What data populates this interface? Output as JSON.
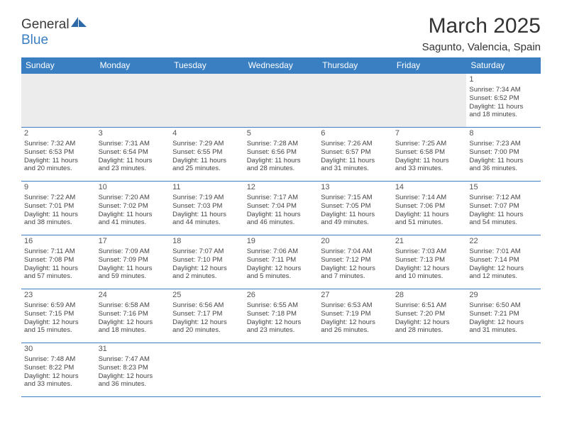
{
  "logo": {
    "word1": "General",
    "word2": "Blue"
  },
  "header": {
    "title": "March 2025",
    "subtitle": "Sagunto, Valencia, Spain"
  },
  "colors": {
    "header_bg": "#3a7fc2",
    "header_text": "#ffffff",
    "cell_border": "#3a7fc2",
    "text": "#444444",
    "blank_bg": "#ececec"
  },
  "days": [
    "Sunday",
    "Monday",
    "Tuesday",
    "Wednesday",
    "Thursday",
    "Friday",
    "Saturday"
  ],
  "weeks": [
    [
      {
        "blank": true
      },
      {
        "blank": true
      },
      {
        "blank": true
      },
      {
        "blank": true
      },
      {
        "blank": true
      },
      {
        "blank": true
      },
      {
        "n": "1",
        "sunrise": "Sunrise: 7:34 AM",
        "sunset": "Sunset: 6:52 PM",
        "day1": "Daylight: 11 hours",
        "day2": "and 18 minutes."
      }
    ],
    [
      {
        "n": "2",
        "sunrise": "Sunrise: 7:32 AM",
        "sunset": "Sunset: 6:53 PM",
        "day1": "Daylight: 11 hours",
        "day2": "and 20 minutes."
      },
      {
        "n": "3",
        "sunrise": "Sunrise: 7:31 AM",
        "sunset": "Sunset: 6:54 PM",
        "day1": "Daylight: 11 hours",
        "day2": "and 23 minutes."
      },
      {
        "n": "4",
        "sunrise": "Sunrise: 7:29 AM",
        "sunset": "Sunset: 6:55 PM",
        "day1": "Daylight: 11 hours",
        "day2": "and 25 minutes."
      },
      {
        "n": "5",
        "sunrise": "Sunrise: 7:28 AM",
        "sunset": "Sunset: 6:56 PM",
        "day1": "Daylight: 11 hours",
        "day2": "and 28 minutes."
      },
      {
        "n": "6",
        "sunrise": "Sunrise: 7:26 AM",
        "sunset": "Sunset: 6:57 PM",
        "day1": "Daylight: 11 hours",
        "day2": "and 31 minutes."
      },
      {
        "n": "7",
        "sunrise": "Sunrise: 7:25 AM",
        "sunset": "Sunset: 6:58 PM",
        "day1": "Daylight: 11 hours",
        "day2": "and 33 minutes."
      },
      {
        "n": "8",
        "sunrise": "Sunrise: 7:23 AM",
        "sunset": "Sunset: 7:00 PM",
        "day1": "Daylight: 11 hours",
        "day2": "and 36 minutes."
      }
    ],
    [
      {
        "n": "9",
        "sunrise": "Sunrise: 7:22 AM",
        "sunset": "Sunset: 7:01 PM",
        "day1": "Daylight: 11 hours",
        "day2": "and 38 minutes."
      },
      {
        "n": "10",
        "sunrise": "Sunrise: 7:20 AM",
        "sunset": "Sunset: 7:02 PM",
        "day1": "Daylight: 11 hours",
        "day2": "and 41 minutes."
      },
      {
        "n": "11",
        "sunrise": "Sunrise: 7:19 AM",
        "sunset": "Sunset: 7:03 PM",
        "day1": "Daylight: 11 hours",
        "day2": "and 44 minutes."
      },
      {
        "n": "12",
        "sunrise": "Sunrise: 7:17 AM",
        "sunset": "Sunset: 7:04 PM",
        "day1": "Daylight: 11 hours",
        "day2": "and 46 minutes."
      },
      {
        "n": "13",
        "sunrise": "Sunrise: 7:15 AM",
        "sunset": "Sunset: 7:05 PM",
        "day1": "Daylight: 11 hours",
        "day2": "and 49 minutes."
      },
      {
        "n": "14",
        "sunrise": "Sunrise: 7:14 AM",
        "sunset": "Sunset: 7:06 PM",
        "day1": "Daylight: 11 hours",
        "day2": "and 51 minutes."
      },
      {
        "n": "15",
        "sunrise": "Sunrise: 7:12 AM",
        "sunset": "Sunset: 7:07 PM",
        "day1": "Daylight: 11 hours",
        "day2": "and 54 minutes."
      }
    ],
    [
      {
        "n": "16",
        "sunrise": "Sunrise: 7:11 AM",
        "sunset": "Sunset: 7:08 PM",
        "day1": "Daylight: 11 hours",
        "day2": "and 57 minutes."
      },
      {
        "n": "17",
        "sunrise": "Sunrise: 7:09 AM",
        "sunset": "Sunset: 7:09 PM",
        "day1": "Daylight: 11 hours",
        "day2": "and 59 minutes."
      },
      {
        "n": "18",
        "sunrise": "Sunrise: 7:07 AM",
        "sunset": "Sunset: 7:10 PM",
        "day1": "Daylight: 12 hours",
        "day2": "and 2 minutes."
      },
      {
        "n": "19",
        "sunrise": "Sunrise: 7:06 AM",
        "sunset": "Sunset: 7:11 PM",
        "day1": "Daylight: 12 hours",
        "day2": "and 5 minutes."
      },
      {
        "n": "20",
        "sunrise": "Sunrise: 7:04 AM",
        "sunset": "Sunset: 7:12 PM",
        "day1": "Daylight: 12 hours",
        "day2": "and 7 minutes."
      },
      {
        "n": "21",
        "sunrise": "Sunrise: 7:03 AM",
        "sunset": "Sunset: 7:13 PM",
        "day1": "Daylight: 12 hours",
        "day2": "and 10 minutes."
      },
      {
        "n": "22",
        "sunrise": "Sunrise: 7:01 AM",
        "sunset": "Sunset: 7:14 PM",
        "day1": "Daylight: 12 hours",
        "day2": "and 12 minutes."
      }
    ],
    [
      {
        "n": "23",
        "sunrise": "Sunrise: 6:59 AM",
        "sunset": "Sunset: 7:15 PM",
        "day1": "Daylight: 12 hours",
        "day2": "and 15 minutes."
      },
      {
        "n": "24",
        "sunrise": "Sunrise: 6:58 AM",
        "sunset": "Sunset: 7:16 PM",
        "day1": "Daylight: 12 hours",
        "day2": "and 18 minutes."
      },
      {
        "n": "25",
        "sunrise": "Sunrise: 6:56 AM",
        "sunset": "Sunset: 7:17 PM",
        "day1": "Daylight: 12 hours",
        "day2": "and 20 minutes."
      },
      {
        "n": "26",
        "sunrise": "Sunrise: 6:55 AM",
        "sunset": "Sunset: 7:18 PM",
        "day1": "Daylight: 12 hours",
        "day2": "and 23 minutes."
      },
      {
        "n": "27",
        "sunrise": "Sunrise: 6:53 AM",
        "sunset": "Sunset: 7:19 PM",
        "day1": "Daylight: 12 hours",
        "day2": "and 26 minutes."
      },
      {
        "n": "28",
        "sunrise": "Sunrise: 6:51 AM",
        "sunset": "Sunset: 7:20 PM",
        "day1": "Daylight: 12 hours",
        "day2": "and 28 minutes."
      },
      {
        "n": "29",
        "sunrise": "Sunrise: 6:50 AM",
        "sunset": "Sunset: 7:21 PM",
        "day1": "Daylight: 12 hours",
        "day2": "and 31 minutes."
      }
    ],
    [
      {
        "n": "30",
        "sunrise": "Sunrise: 7:48 AM",
        "sunset": "Sunset: 8:22 PM",
        "day1": "Daylight: 12 hours",
        "day2": "and 33 minutes."
      },
      {
        "n": "31",
        "sunrise": "Sunrise: 7:47 AM",
        "sunset": "Sunset: 8:23 PM",
        "day1": "Daylight: 12 hours",
        "day2": "and 36 minutes."
      },
      {
        "blank": true
      },
      {
        "blank": true
      },
      {
        "blank": true
      },
      {
        "blank": true
      },
      {
        "blank": true
      }
    ]
  ]
}
